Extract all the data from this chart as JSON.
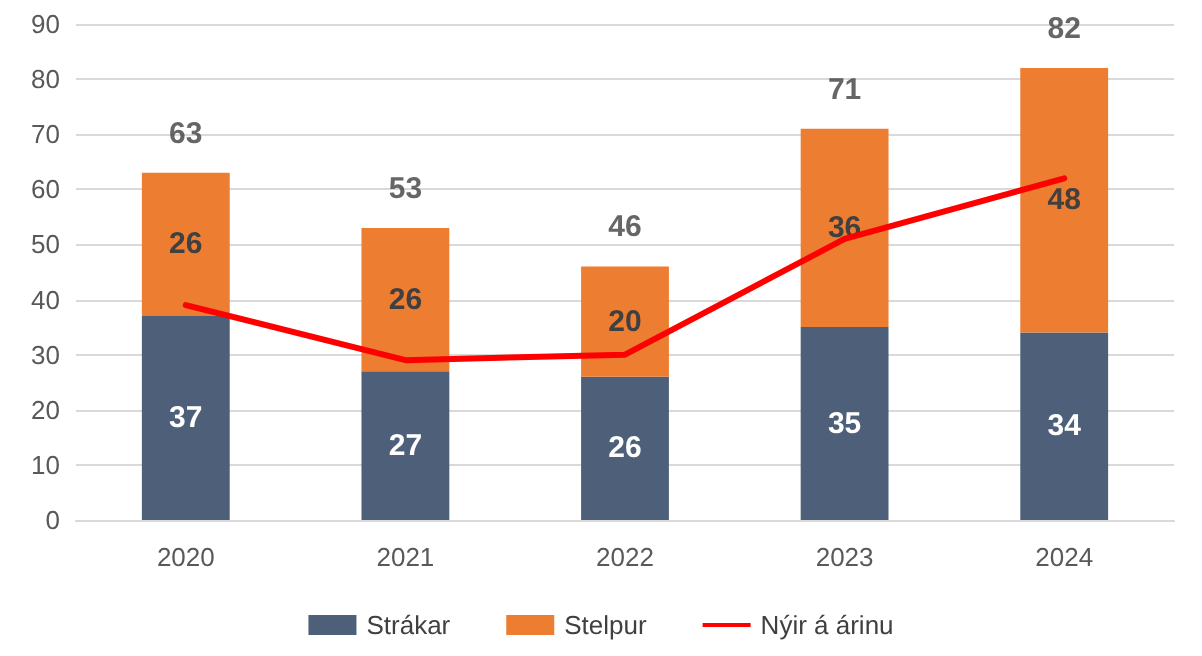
{
  "chart_data": {
    "type": "bar",
    "stacked": true,
    "categories": [
      "2020",
      "2021",
      "2022",
      "2023",
      "2024"
    ],
    "series": [
      {
        "name": "Strákar",
        "color": "#4e6079",
        "values": [
          37,
          27,
          26,
          35,
          34
        ],
        "data_labels": true
      },
      {
        "name": "Stelpur",
        "color": "#ed7d31",
        "values": [
          26,
          26,
          20,
          36,
          48
        ],
        "data_labels": true
      },
      {
        "name": "Nýir á árinu",
        "type": "line",
        "color": "#ff0000",
        "values": [
          39,
          29,
          30,
          51,
          62
        ],
        "marker": "none",
        "line_style": "solid"
      }
    ],
    "totals": [
      "63",
      "53",
      "46",
      "71",
      "82"
    ],
    "ylim": [
      0,
      90
    ],
    "yticks": [
      0,
      10,
      20,
      30,
      40,
      50,
      60,
      70,
      80,
      90
    ],
    "grid": "y",
    "legend": "bottom"
  }
}
